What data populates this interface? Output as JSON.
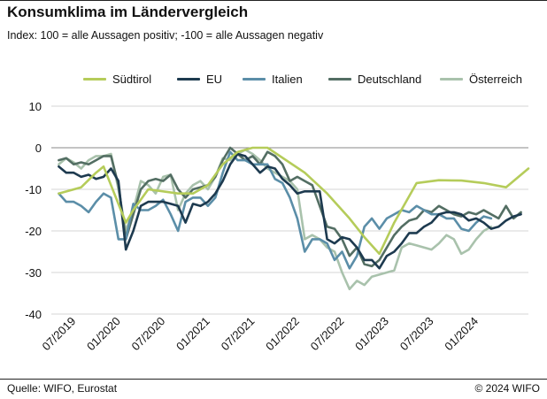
{
  "chart_data": {
    "type": "line",
    "title": "Konsumklima im Ländervergleich",
    "subtitle": "Index: 100 = alle Aussagen positiv; -100 =  alle Aussagen negativ",
    "xlabel": "",
    "ylabel": "",
    "x_ticks": [
      "07/2019",
      "01/2020",
      "07/2020",
      "01/2021",
      "07/2021",
      "01/2022",
      "07/2022",
      "01/2023",
      "07/2023",
      "01/2024"
    ],
    "ylim": [
      -40,
      10
    ],
    "y_ticks": [
      10,
      0,
      -10,
      -20,
      -30,
      -40
    ],
    "grid": "horizontal",
    "legend_position": "top",
    "series": [
      {
        "name": "Südtirol",
        "color": "#b5cc5a",
        "points": [
          [
            0,
            -11
          ],
          [
            3,
            -9.5
          ],
          [
            5,
            -6
          ],
          [
            6,
            -4.5
          ],
          [
            9,
            -18
          ],
          [
            10,
            -15
          ],
          [
            12,
            -10
          ],
          [
            16,
            -11
          ],
          [
            18,
            -11
          ],
          [
            20,
            -9
          ],
          [
            22,
            -4
          ],
          [
            24,
            -1
          ],
          [
            26,
            0
          ],
          [
            28,
            0
          ],
          [
            33,
            -6
          ],
          [
            36,
            -11
          ],
          [
            39,
            -17
          ],
          [
            41,
            -21.5
          ],
          [
            43,
            -25.5
          ],
          [
            45,
            -18
          ],
          [
            48,
            -8.5
          ],
          [
            51,
            -7.8
          ],
          [
            54,
            -7.9
          ],
          [
            57,
            -8.5
          ],
          [
            60,
            -9.5
          ],
          [
            63,
            -5
          ]
        ]
      },
      {
        "name": "EU",
        "color": "#1d3a4f",
        "points": [
          [
            0,
            -4.5
          ],
          [
            1,
            -6
          ],
          [
            2,
            -6
          ],
          [
            3,
            -7
          ],
          [
            4,
            -6.5
          ],
          [
            5,
            -7.5
          ],
          [
            6,
            -7
          ],
          [
            7,
            -5
          ],
          [
            8,
            -8
          ],
          [
            9,
            -24.5
          ],
          [
            10,
            -20
          ],
          [
            11,
            -14
          ],
          [
            12,
            -13
          ],
          [
            13,
            -13
          ],
          [
            14,
            -13
          ],
          [
            15,
            -13.5
          ],
          [
            16,
            -14
          ],
          [
            17,
            -18
          ],
          [
            18,
            -13.5
          ],
          [
            19,
            -14
          ],
          [
            20,
            -13
          ],
          [
            21,
            -11
          ],
          [
            22,
            -8
          ],
          [
            23,
            -4
          ],
          [
            24,
            -1.5
          ],
          [
            25,
            -2
          ],
          [
            26,
            -4
          ],
          [
            27,
            -6
          ],
          [
            28,
            -4.5
          ],
          [
            29,
            -5
          ],
          [
            30,
            -7.5
          ],
          [
            31,
            -9
          ],
          [
            32,
            -11
          ],
          [
            33,
            -10.5
          ],
          [
            34,
            -10.5
          ],
          [
            35,
            -10.5
          ],
          [
            36,
            -22
          ],
          [
            37,
            -23
          ],
          [
            38,
            -21.5
          ],
          [
            39,
            -22
          ],
          [
            40,
            -24
          ],
          [
            41,
            -27
          ],
          [
            42,
            -27
          ],
          [
            43,
            -29
          ],
          [
            44,
            -26
          ],
          [
            45,
            -25
          ],
          [
            46,
            -23
          ],
          [
            47,
            -20.5
          ],
          [
            48,
            -20.5
          ],
          [
            49,
            -19
          ],
          [
            50,
            -18
          ],
          [
            51,
            -16
          ],
          [
            52,
            -15.5
          ],
          [
            53,
            -15.5
          ],
          [
            54,
            -16
          ],
          [
            55,
            -17.5
          ],
          [
            56,
            -17
          ],
          [
            57,
            -18
          ],
          [
            58,
            -19.5
          ],
          [
            59,
            -19
          ],
          [
            60,
            -17.5
          ],
          [
            61,
            -16.5
          ],
          [
            62,
            -16
          ]
        ]
      },
      {
        "name": "Italien",
        "color": "#5b8ea8",
        "points": [
          [
            0,
            -11
          ],
          [
            1,
            -13
          ],
          [
            2,
            -13
          ],
          [
            3,
            -14
          ],
          [
            4,
            -15.5
          ],
          [
            5,
            -13
          ],
          [
            6,
            -11
          ],
          [
            7,
            -12
          ],
          [
            8,
            -22
          ],
          [
            9,
            -22
          ],
          [
            10,
            -13.5
          ],
          [
            11,
            -15
          ],
          [
            12,
            -15
          ],
          [
            13,
            -14
          ],
          [
            14,
            -12.5
          ],
          [
            15,
            -16
          ],
          [
            16,
            -20
          ],
          [
            17,
            -13
          ],
          [
            18,
            -12
          ],
          [
            19,
            -12
          ],
          [
            20,
            -14
          ],
          [
            21,
            -12
          ],
          [
            22,
            -6
          ],
          [
            23,
            -1
          ],
          [
            24,
            -3
          ],
          [
            25,
            -3
          ],
          [
            26,
            -4
          ],
          [
            27,
            -4
          ],
          [
            28,
            -4
          ],
          [
            29,
            -7.5
          ],
          [
            30,
            -8.5
          ],
          [
            31,
            -12
          ],
          [
            32,
            -17
          ],
          [
            33,
            -25
          ],
          [
            34,
            -22
          ],
          [
            35,
            -22
          ],
          [
            36,
            -23
          ],
          [
            37,
            -27
          ],
          [
            38,
            -25
          ],
          [
            39,
            -29
          ],
          [
            40,
            -26
          ],
          [
            41,
            -19
          ],
          [
            42,
            -17
          ],
          [
            43,
            -19.5
          ],
          [
            44,
            -17
          ],
          [
            45,
            -16
          ],
          [
            46,
            -15
          ],
          [
            47,
            -15.5
          ],
          [
            48,
            -14
          ],
          [
            49,
            -15
          ],
          [
            50,
            -16
          ],
          [
            51,
            -16
          ],
          [
            52,
            -17
          ],
          [
            53,
            -17
          ],
          [
            54,
            -19.5
          ],
          [
            55,
            -20
          ],
          [
            56,
            -18
          ],
          [
            57,
            -16.5
          ],
          [
            58,
            -17
          ]
        ]
      },
      {
        "name": "Deutschland",
        "color": "#536e63",
        "points": [
          [
            0,
            -3
          ],
          [
            1,
            -2.5
          ],
          [
            2,
            -4
          ],
          [
            3,
            -3.5
          ],
          [
            4,
            -4
          ],
          [
            5,
            -3
          ],
          [
            6,
            -2
          ],
          [
            7,
            -2
          ],
          [
            8,
            -9
          ],
          [
            9,
            -22
          ],
          [
            10,
            -16
          ],
          [
            11,
            -10
          ],
          [
            12,
            -8
          ],
          [
            13,
            -7.5
          ],
          [
            14,
            -8
          ],
          [
            15,
            -6.5
          ],
          [
            16,
            -10
          ],
          [
            17,
            -12
          ],
          [
            18,
            -10
          ],
          [
            19,
            -9.5
          ],
          [
            20,
            -9
          ],
          [
            21,
            -7
          ],
          [
            22,
            -3
          ],
          [
            23,
            0
          ],
          [
            24,
            -1.5
          ],
          [
            25,
            -3
          ],
          [
            26,
            -2
          ],
          [
            27,
            -4
          ],
          [
            28,
            -1
          ],
          [
            29,
            -2
          ],
          [
            30,
            -4
          ],
          [
            31,
            -8
          ],
          [
            32,
            -7
          ],
          [
            33,
            -8
          ],
          [
            34,
            -9
          ],
          [
            35,
            -14
          ],
          [
            36,
            -19
          ],
          [
            37,
            -19.5
          ],
          [
            38,
            -22
          ],
          [
            39,
            -26
          ],
          [
            40,
            -24
          ],
          [
            41,
            -28
          ],
          [
            42,
            -28.5
          ],
          [
            43,
            -27
          ],
          [
            44,
            -24
          ],
          [
            45,
            -21
          ],
          [
            46,
            -19
          ],
          [
            47,
            -17.5
          ],
          [
            48,
            -17
          ],
          [
            49,
            -15
          ],
          [
            50,
            -15.5
          ],
          [
            51,
            -14
          ],
          [
            52,
            -15
          ],
          [
            53,
            -16
          ],
          [
            54,
            -16.5
          ],
          [
            55,
            -15.5
          ],
          [
            56,
            -16
          ],
          [
            57,
            -15
          ],
          [
            58,
            -16
          ],
          [
            59,
            -17
          ],
          [
            60,
            -14
          ],
          [
            61,
            -17
          ],
          [
            62,
            -15.5
          ]
        ]
      },
      {
        "name": "Österreich",
        "color": "#a9c2ac",
        "points": [
          [
            0,
            -4
          ],
          [
            1,
            -2.5
          ],
          [
            2,
            -3.5
          ],
          [
            3,
            -5
          ],
          [
            4,
            -3
          ],
          [
            5,
            -2
          ],
          [
            6,
            -2
          ],
          [
            7,
            -1.5
          ],
          [
            8,
            -10
          ],
          [
            9,
            -20
          ],
          [
            10,
            -15
          ],
          [
            11,
            -8
          ],
          [
            12,
            -9
          ],
          [
            13,
            -11
          ],
          [
            14,
            -7
          ],
          [
            15,
            -6.5
          ],
          [
            16,
            -15
          ],
          [
            17,
            -11
          ],
          [
            18,
            -9
          ],
          [
            19,
            -8
          ],
          [
            20,
            -10
          ],
          [
            21,
            -7
          ],
          [
            22,
            -2.5
          ],
          [
            23,
            -3
          ],
          [
            24,
            -1.5
          ],
          [
            25,
            -0.5
          ],
          [
            26,
            -1.5
          ],
          [
            27,
            -3
          ],
          [
            28,
            -5
          ],
          [
            29,
            -6
          ],
          [
            30,
            -7
          ],
          [
            31,
            -8
          ],
          [
            32,
            -10
          ],
          [
            33,
            -22
          ],
          [
            34,
            -21
          ],
          [
            35,
            -22
          ],
          [
            36,
            -24
          ],
          [
            37,
            -25
          ],
          [
            38,
            -30
          ],
          [
            39,
            -34
          ],
          [
            40,
            -32
          ],
          [
            41,
            -33
          ],
          [
            42,
            -31
          ],
          [
            43,
            -30.5
          ],
          [
            44,
            -30
          ],
          [
            45,
            -29.5
          ],
          [
            46,
            -24
          ],
          [
            47,
            -23
          ],
          [
            48,
            -23.5
          ],
          [
            49,
            -24
          ],
          [
            50,
            -24.5
          ],
          [
            51,
            -23
          ],
          [
            52,
            -21
          ],
          [
            53,
            -22
          ],
          [
            54,
            -25.5
          ],
          [
            55,
            -24.5
          ],
          [
            56,
            -22
          ],
          [
            57,
            -20
          ],
          [
            58,
            -19
          ]
        ]
      }
    ]
  },
  "footer": {
    "source": "Quelle: WIFO, Eurostat",
    "copyright": "© 2024 WIFO"
  }
}
